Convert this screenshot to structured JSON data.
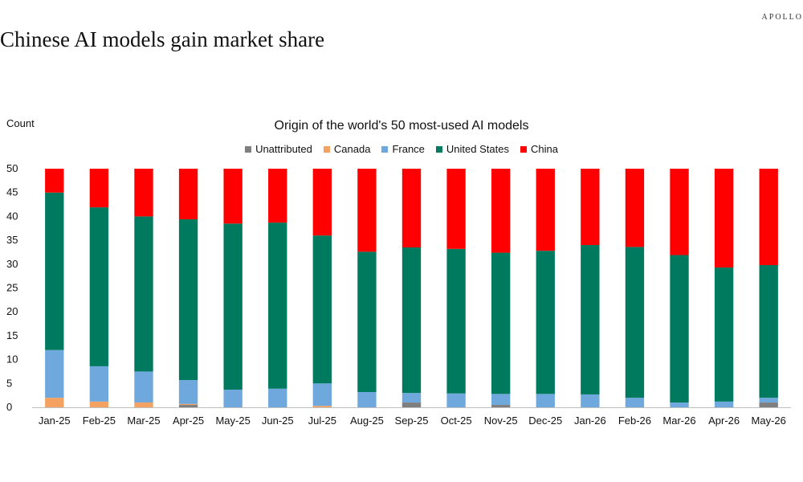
{
  "header": {
    "brand": "APOLLO",
    "title": "Chinese AI models gain market share"
  },
  "chart_data": {
    "type": "bar",
    "stacked": true,
    "title": "Origin of the world's 50 most-used AI models",
    "ylabel": "Count",
    "xlabel": "",
    "ylim": [
      0,
      50
    ],
    "yticks": [
      0,
      5,
      10,
      15,
      20,
      25,
      30,
      35,
      40,
      45,
      50
    ],
    "legend_position": "top-center",
    "grid": false,
    "categories": [
      "Jan-25",
      "Feb-25",
      "Mar-25",
      "Apr-25",
      "May-25",
      "Jun-25",
      "Jul-25",
      "Aug-25",
      "Sep-25",
      "Oct-25",
      "Nov-25",
      "Dec-25",
      "Jan-26",
      "Feb-26",
      "Mar-26",
      "Apr-26",
      "May-26"
    ],
    "series": [
      {
        "name": "Unattributed",
        "color": "#7f7f7f",
        "values": [
          0,
          0,
          0,
          0.5,
          0,
          0,
          0,
          0,
          1,
          0,
          0.5,
          0,
          0,
          0,
          0,
          0,
          1
        ]
      },
      {
        "name": "Canada",
        "color": "#f4a261",
        "values": [
          2,
          1.2,
          1,
          0.2,
          0,
          0,
          0.3,
          0,
          0,
          0,
          0,
          0,
          0,
          0,
          0,
          0,
          0
        ]
      },
      {
        "name": "France",
        "color": "#6fa8dc",
        "values": [
          10,
          7.4,
          6.5,
          5,
          3.7,
          3.9,
          4.7,
          3.2,
          2,
          2.9,
          2.3,
          2.8,
          2.7,
          2,
          1,
          1.2,
          1
        ]
      },
      {
        "name": "United States",
        "color": "#007a5e",
        "values": [
          33,
          33.3,
          32.5,
          33.7,
          34.8,
          34.8,
          31,
          29.4,
          30.5,
          30.3,
          29.6,
          30,
          31.3,
          31.6,
          30.9,
          28.1,
          27.8
        ]
      },
      {
        "name": "China",
        "color": "#ff0000",
        "values": [
          5,
          8.1,
          10,
          10.6,
          11.5,
          11.3,
          14,
          17.4,
          16.5,
          16.8,
          17.6,
          17.2,
          16,
          16.4,
          18.1,
          20.7,
          20.2
        ]
      }
    ]
  }
}
